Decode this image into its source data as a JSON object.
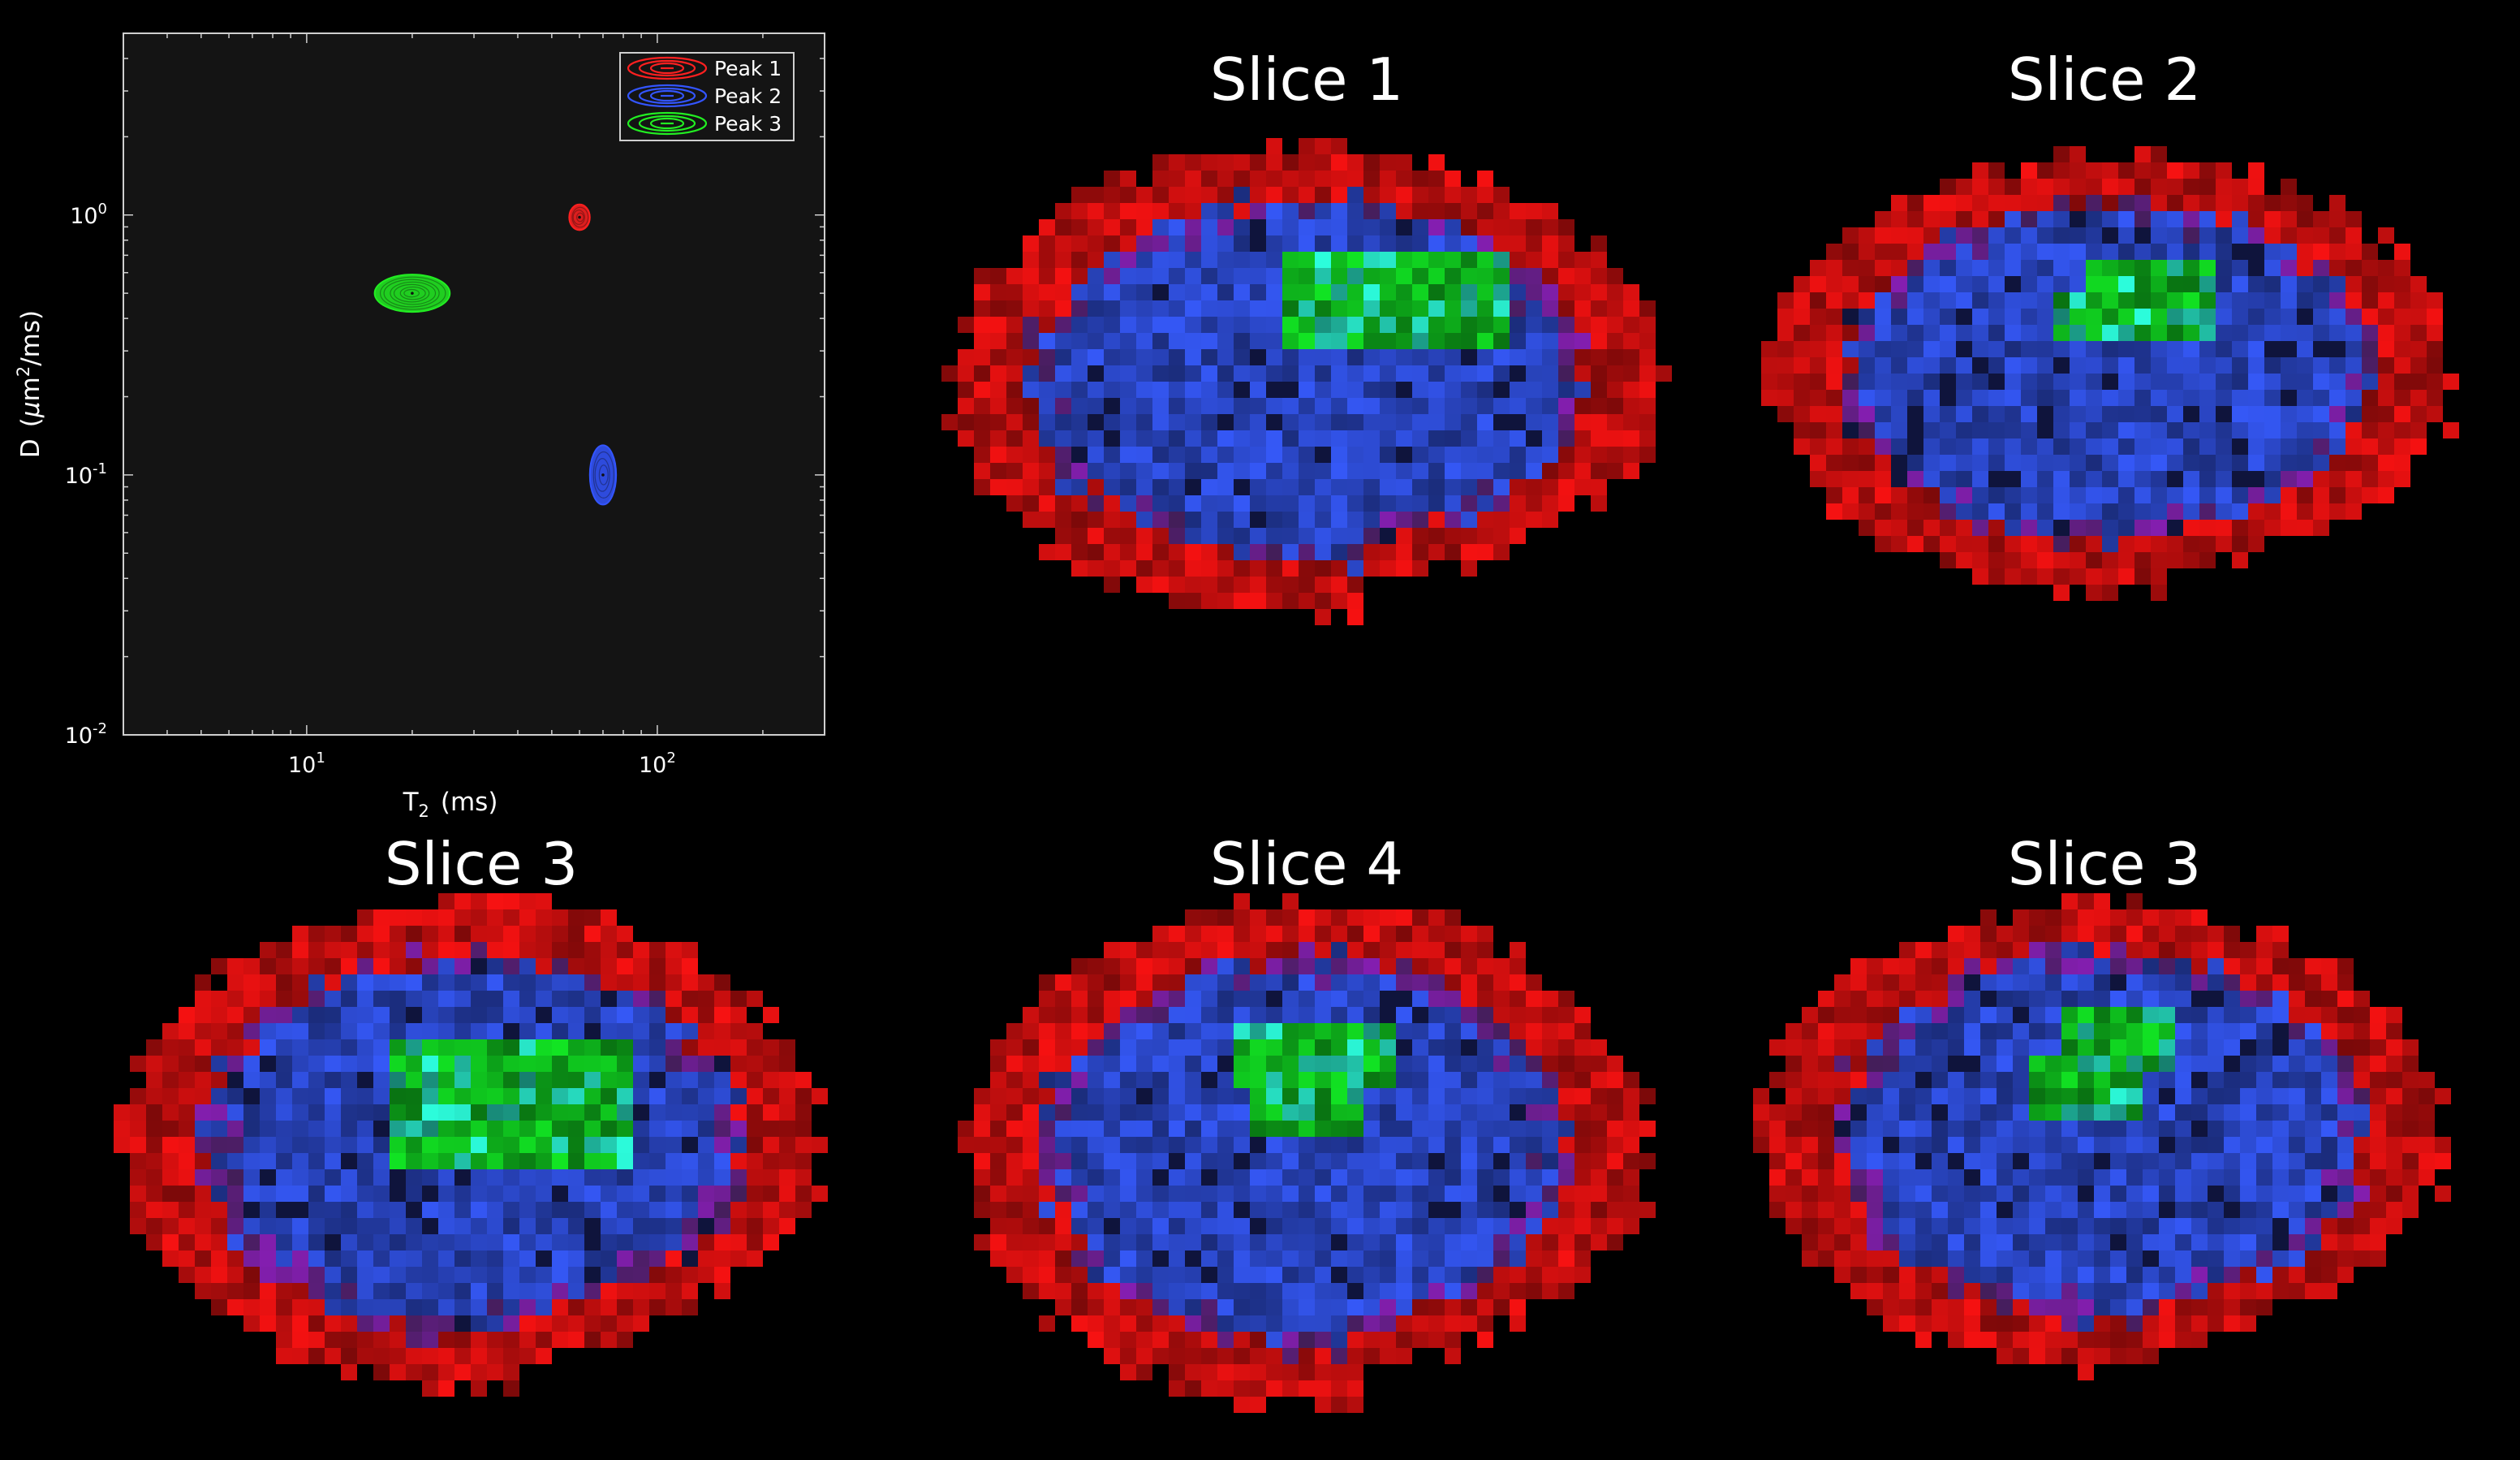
{
  "chart_data": {
    "type": "contour",
    "title": "",
    "xlabel": "T",
    "xlabel_sub": "2",
    "xlabel_unit": "(ms)",
    "ylabel": "D",
    "ylabel_unit_prefix": "(",
    "ylabel_mu": "μ",
    "ylabel_unit_main": "m",
    "ylabel_unit_sup": "2",
    "ylabel_unit_suffix": "/ms)",
    "xscale": "log",
    "yscale": "log",
    "xlim": [
      3,
      300
    ],
    "ylim": [
      0.01,
      5
    ],
    "xticks": [
      {
        "value": 10,
        "base": "10",
        "exp": "1"
      },
      {
        "value": 100,
        "base": "10",
        "exp": "2"
      }
    ],
    "yticks": [
      {
        "value": 1,
        "base": "10",
        "exp": "0"
      },
      {
        "value": 0.1,
        "base": "10",
        "exp": "-1"
      },
      {
        "value": 0.01,
        "base": "10",
        "exp": "-2"
      }
    ],
    "grid": false,
    "legend_position": "top-right",
    "series": [
      {
        "name": "Peak 1",
        "color": "#ff2020",
        "t2": 60,
        "d": 0.98,
        "t2_spread": 1.07,
        "d_spread": 1.12,
        "rings": 3
      },
      {
        "name": "Peak 2",
        "color": "#3355ff",
        "t2": 70,
        "d": 0.1,
        "t2_spread": 1.09,
        "d_spread": 1.3,
        "rings": 3
      },
      {
        "name": "Peak 3",
        "color": "#22ee22",
        "t2": 20,
        "d": 0.5,
        "t2_spread": 1.28,
        "d_spread": 1.18,
        "rings": 6
      }
    ]
  },
  "slices": [
    {
      "title": "Slice 1"
    },
    {
      "title": "Slice 2"
    },
    {
      "title": "Slice 3"
    },
    {
      "title": "Slice 4"
    },
    {
      "title": "Slice 3"
    }
  ],
  "colors": {
    "background": "#000000",
    "plot_background": "#141414",
    "axis": "#cfcfcf",
    "text": "#ffffff",
    "map_red": "#e01010",
    "map_blue": "#3050e0",
    "map_green": "#10d020"
  }
}
